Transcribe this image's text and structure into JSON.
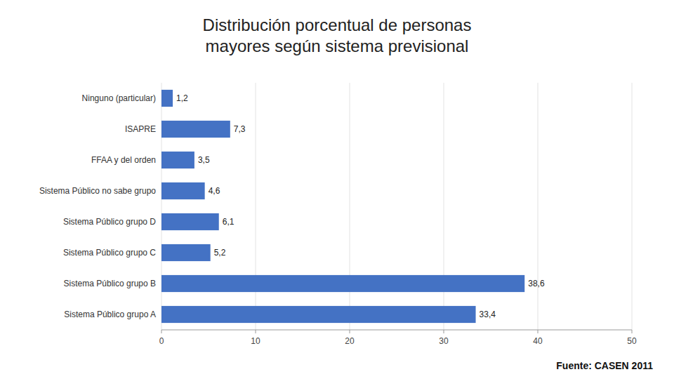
{
  "chart_data": {
    "type": "bar",
    "orientation": "horizontal",
    "title": "Distribución porcentual de personas\nmayores según sistema previsional",
    "annotations": [
      "Fuente: CASEN 2011"
    ],
    "categories": [
      "Sistema Público grupo A",
      "Sistema Público grupo B",
      "Sistema Público grupo C",
      "Sistema Público grupo D",
      "Sistema Público no sabe grupo",
      "FFAA y del orden",
      "ISAPRE",
      "Ninguno (particular)"
    ],
    "values": [
      33.4,
      38.6,
      5.2,
      6.1,
      4.6,
      3.5,
      7.3,
      1.2
    ],
    "value_labels": [
      "33,4",
      "38,6",
      "5,2",
      "6,1",
      "4,6",
      "3,5",
      "7,3",
      "1,2"
    ],
    "data_labels": true,
    "color": "#4472C4",
    "xlim": [
      0,
      50
    ],
    "xticks": [
      0,
      10,
      20,
      30,
      40,
      50
    ],
    "grid": true
  }
}
